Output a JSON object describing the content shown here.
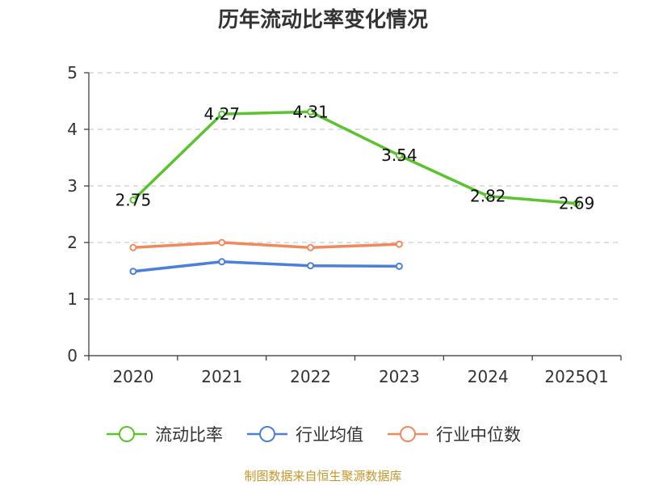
{
  "chart_data": {
    "type": "line",
    "title": "历年流动比率变化情况",
    "categories": [
      "2020",
      "2021",
      "2022",
      "2023",
      "2024",
      "2025Q1"
    ],
    "ylim": [
      0,
      5
    ],
    "yticks": [
      "0",
      "1",
      "2",
      "3",
      "4",
      "5"
    ],
    "grid": true,
    "legend_position": "bottom",
    "series": [
      {
        "name": "流动比率",
        "color": "#5ac32e",
        "values": [
          2.75,
          4.27,
          4.31,
          3.54,
          2.82,
          2.69
        ],
        "labels": [
          "2.75",
          "4.27",
          "4.31",
          "3.54",
          "2.82",
          "2.69"
        ]
      },
      {
        "name": "行业均值",
        "color": "#4a7fdc",
        "values": [
          1.49,
          1.66,
          1.59,
          1.58,
          null,
          null
        ]
      },
      {
        "name": "行业中位数",
        "color": "#f08a5d",
        "values": [
          1.91,
          2.0,
          1.91,
          1.97,
          null,
          null
        ]
      }
    ],
    "source": "制图数据来自恒生聚源数据库"
  }
}
